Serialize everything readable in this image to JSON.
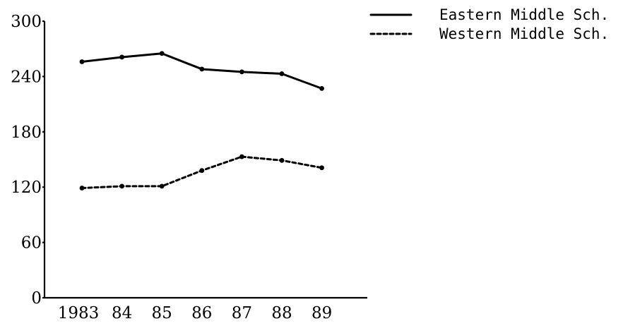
{
  "chart_data": {
    "type": "line",
    "title": "",
    "xlabel": "",
    "ylabel": "",
    "categories": [
      "1983",
      "84",
      "85",
      "86",
      "87",
      "88",
      "89"
    ],
    "y_ticks": [
      "0",
      "60",
      "120",
      "180",
      "240",
      "300"
    ],
    "ylim": [
      0,
      300
    ],
    "grid": false,
    "legend_position": "top-right",
    "series": [
      {
        "name": "Eastern Middle Sch.",
        "style": "solid",
        "values": [
          256,
          261,
          265,
          248,
          245,
          243,
          227
        ]
      },
      {
        "name": "Western Middle Sch.",
        "style": "dashed",
        "values": [
          119,
          121,
          121,
          138,
          153,
          149,
          141
        ]
      }
    ],
    "colors": {
      "line": "#000000",
      "background": "#ffffff"
    }
  }
}
